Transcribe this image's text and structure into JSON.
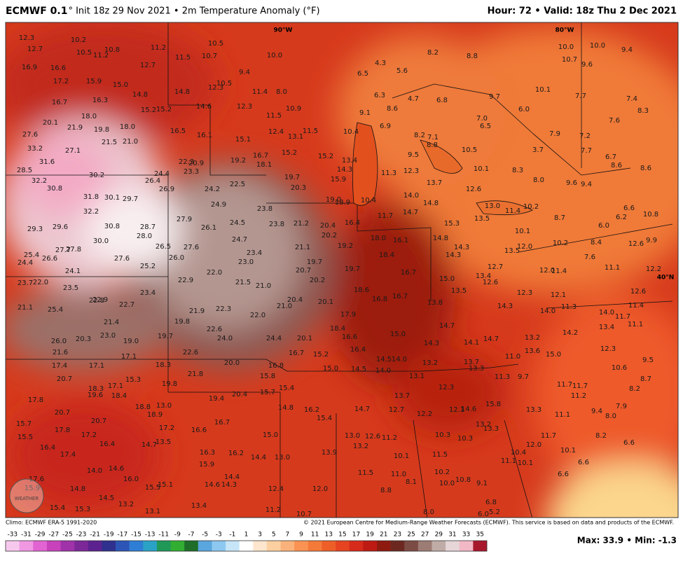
{
  "header": {
    "model": "ECMWF 0.1",
    "description": "° Init 18z 29 Nov 2021 • 2m Temperature Anomaly (°F)",
    "valid": "Hour: 72 • Valid: 18z Thu 2 Dec 2021"
  },
  "map": {
    "grid_labels": [
      "90°W",
      "80°W",
      "40°N"
    ],
    "watermark": "WEATHER",
    "labels": [
      "12.3",
      "10.2",
      "12.7",
      "10.5",
      "11.2",
      "10.8",
      "11.2",
      "11.5",
      "10.7",
      "10.5",
      "10.0",
      "16.9",
      "16.6",
      "12.7",
      "9.4",
      "6.5",
      "4.3",
      "5.6",
      "8.2",
      "8.8",
      "10.0",
      "10.0",
      "9.4",
      "10.7",
      "9.6",
      "17.2",
      "15.9",
      "15.0",
      "14.8",
      "14.8",
      "12.3",
      "10.5",
      "11.4",
      "8.0",
      "6.3",
      "4.7",
      "6.8",
      "9.7",
      "10.1",
      "7.7",
      "7.4",
      "16.7",
      "16.3",
      "15.2",
      "15.2",
      "14.6",
      "12.3",
      "10.9",
      "8.6",
      "6.0",
      "8.3",
      "18.0",
      "11.5",
      "9.1",
      "7.0",
      "6.5",
      "7.6",
      "20.1",
      "21.9",
      "19.8",
      "18.0",
      "16.5",
      "16.1",
      "12.4",
      "13.1",
      "11.5",
      "10.4",
      "6.9",
      "8.2",
      "7.1",
      "7.9",
      "7.2",
      "27.6",
      "21.5",
      "21.0",
      "15.1",
      "8.8",
      "3.7",
      "33.2",
      "27.1",
      "16.7",
      "15.2",
      "15.2",
      "13.4",
      "9.5",
      "10.5",
      "7.7",
      "6.7",
      "31.6",
      "22.3",
      "20.9",
      "19.2",
      "18.1",
      "14.3",
      "12.3",
      "10.1",
      "8.3",
      "8.6",
      "8.6",
      "28.5",
      "30.2",
      "24.4",
      "23.3",
      "19.7",
      "15.9",
      "11.3",
      "32.2",
      "26.4",
      "22.5",
      "20.3",
      "13.7",
      "8.0",
      "9.6",
      "9.4",
      "30.8",
      "26.9",
      "24.2",
      "14.0",
      "12.6",
      "31.8",
      "30.1",
      "29.7",
      "19.0",
      "18.9",
      "10.4",
      "14.8",
      "13.0",
      "11.4",
      "10.2",
      "6.6",
      "24.9",
      "23.8",
      "14.7",
      "11.7",
      "8.7",
      "6.2",
      "10.8",
      "32.2",
      "27.9",
      "26.1",
      "24.5",
      "23.8",
      "21.2",
      "20.4",
      "16.4",
      "15.3",
      "13.5",
      "6.0",
      "29.3",
      "29.6",
      "30.8",
      "28.7",
      "28.0",
      "20.2",
      "18.0",
      "16.1",
      "14.8",
      "10.1",
      "30.0",
      "24.7",
      "21.1",
      "19.2",
      "14.3",
      "12.0",
      "13.5",
      "10.2",
      "8.4",
      "12.6",
      "9.9",
      "27.7",
      "27.8",
      "26.5",
      "27.6",
      "23.4",
      "18.4",
      "14.3",
      "25.4",
      "26.6",
      "26.0",
      "27.6",
      "23.0",
      "19.7",
      "7.6",
      "24.4",
      "25.2",
      "16.7",
      "12.7",
      "12.0",
      "11.4",
      "11.1",
      "12.2",
      "24.1",
      "22.0",
      "20.7",
      "19.7",
      "13.4",
      "22.9",
      "21.5",
      "21.0",
      "20.2",
      "15.0",
      "12.6",
      "23.7",
      "22.0",
      "23.5",
      "18.6",
      "13.5",
      "12.3",
      "12.1",
      "12.6",
      "22.8",
      "22.9",
      "22.7",
      "23.4",
      "16.8",
      "16.7",
      "13.8",
      "21.0",
      "20.4",
      "20.1",
      "14.3",
      "14.0",
      "11.3",
      "14.0",
      "11.7",
      "21.1",
      "25.4",
      "21.9",
      "22.3",
      "22.0",
      "17.9",
      "11.4",
      "21.4",
      "19.8",
      "13.4",
      "11.1",
      "22.6",
      "18.4",
      "14.7",
      "23.0",
      "19.7",
      "24.0",
      "24.4",
      "20.1",
      "16.6",
      "15.0",
      "14.2",
      "26.0",
      "20.3",
      "19.0",
      "14.3",
      "14.1",
      "14.7",
      "13.2",
      "12.3",
      "16.4",
      "21.6",
      "22.6",
      "16.7",
      "15.2",
      "13.6",
      "15.0",
      "11.0",
      "17.1",
      "14.5",
      "14.0",
      "9.5",
      "17.4",
      "17.1",
      "18.3",
      "20.0",
      "16.8",
      "15.0",
      "14.5",
      "14.0",
      "13.2",
      "13.7",
      "13.3",
      "10.6",
      "20.7",
      "15.3",
      "21.8",
      "15.8",
      "13.1",
      "11.3",
      "9.7",
      "8.7",
      "18.3",
      "17.1",
      "19.8",
      "15.4",
      "12.3",
      "11.7",
      "11.7",
      "8.2",
      "19.6",
      "18.4",
      "15.7",
      "13.7",
      "11.2",
      "17.8",
      "19.4",
      "20.4",
      "15.8",
      "7.9",
      "18.8",
      "13.0",
      "14.8",
      "16.2",
      "14.7",
      "12.7",
      "12.1",
      "14.6",
      "13.3",
      "9.4",
      "18.9",
      "12.2",
      "11.1",
      "8.0",
      "20.7",
      "20.7",
      "16.7",
      "15.4",
      "13.2",
      "15.7",
      "17.2",
      "16.6",
      "17.8",
      "15.0",
      "13.0",
      "12.6",
      "11.2",
      "10.3",
      "10.3",
      "13.3",
      "11.7",
      "8.2",
      "15.5",
      "17.2",
      "13.5",
      "14.7",
      "16.4",
      "16.4",
      "13.2",
      "12.0",
      "6.6",
      "16.3",
      "16.2",
      "13.9",
      "14.4",
      "13.0",
      "10.1",
      "11.5",
      "10.4",
      "10.1",
      "17.4",
      "15.9",
      "11.1",
      "10.1",
      "6.6",
      "14.0",
      "14.6",
      "11.5",
      "11.0",
      "10.2",
      "17.6",
      "16.0",
      "14.4",
      "8.1",
      "10.0",
      "10.8",
      "9.1",
      "6.6",
      "15.9",
      "14.8",
      "15.5",
      "15.1",
      "14.6",
      "14.3",
      "12.4",
      "12.0",
      "8.8",
      "14.5",
      "13.2",
      "13.1",
      "13.4",
      "11.2",
      "6.8",
      "5.2",
      "15.4",
      "15.3",
      "10.7",
      "8.0",
      "6.0"
    ]
  },
  "footer": {
    "climo": "Climo: ECMWF ERA-5 1991-2020",
    "copyright": "© 2021 European Centre for Medium-Range Weather Forecasts (ECMWF). This service is based on data and products of the ECMWF.",
    "maxmin": "Max: 33.9 • Min: -1.3"
  },
  "colorbar": {
    "ticks": [
      -33,
      -31,
      -29,
      -27,
      -25,
      -23,
      -21,
      -19,
      -17,
      -15,
      -13,
      -11,
      -9,
      -7,
      -5,
      -3,
      -1,
      1,
      3,
      5,
      7,
      9,
      11,
      13,
      15,
      17,
      19,
      21,
      23,
      25,
      27,
      29,
      31,
      33,
      35
    ],
    "colors": [
      "#f7c8ee",
      "#f098e2",
      "#e264d2",
      "#c842bc",
      "#a032aa",
      "#7c2898",
      "#5c2290",
      "#30308e",
      "#2c55b6",
      "#2f7ed6",
      "#2aa2c6",
      "#1f9858",
      "#32ae32",
      "#1e6e2a",
      "#5aa6de",
      "#8cc8ef",
      "#c6e5f7",
      "#ffffff",
      "#fde6cd",
      "#fccfa0",
      "#fbb27a",
      "#f99252",
      "#f47a3a",
      "#ee5f28",
      "#e64420",
      "#d62a1a",
      "#bd1a14",
      "#8e1a10",
      "#6c2820",
      "#7c4c44",
      "#9c7c74",
      "#c0aca6",
      "#e6d6d8",
      "#f2b8c6",
      "#a8182c"
    ]
  }
}
